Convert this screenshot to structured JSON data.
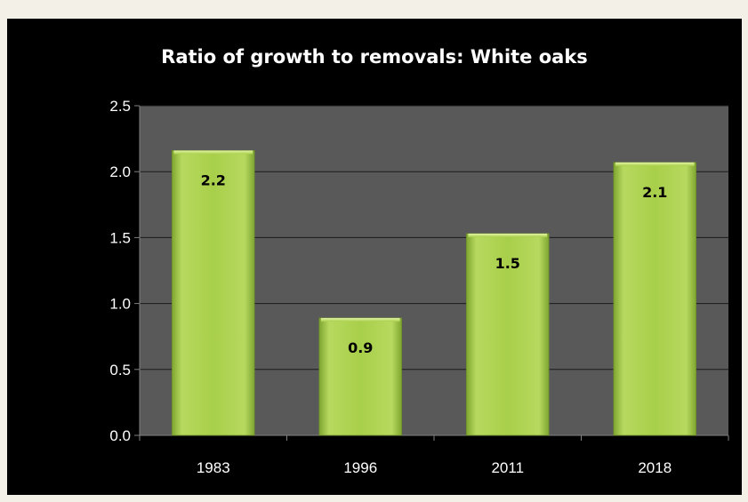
{
  "chart_data": {
    "type": "bar",
    "title": "Ratio of growth to removals: White oaks",
    "xlabel": "",
    "ylabel": "",
    "categories": [
      "1983",
      "1996",
      "2011",
      "2018"
    ],
    "values": [
      2.16,
      0.89,
      1.53,
      2.07
    ],
    "data_labels": [
      "2.2",
      "0.9",
      "1.5",
      "2.1"
    ],
    "ylim": [
      0,
      2.5
    ],
    "y_ticks": [
      0,
      0.5,
      1.0,
      1.5,
      2.0,
      2.5
    ],
    "y_tick_labels": [
      "0.0",
      "0.5",
      "1.0",
      "1.5",
      "2.0",
      "2.5"
    ],
    "grid": true,
    "legend": "none"
  },
  "colors": {
    "page_background": "#f3f0e8",
    "chart_background": "#000000",
    "plot_background": "#595959",
    "gridline": "#1a1a1a",
    "bar_light": "#d4ec8c",
    "bar_mid": "#a8cf4a",
    "bar_dark": "#7fa632",
    "text": "#ffffff",
    "data_label_text": "#000000"
  }
}
